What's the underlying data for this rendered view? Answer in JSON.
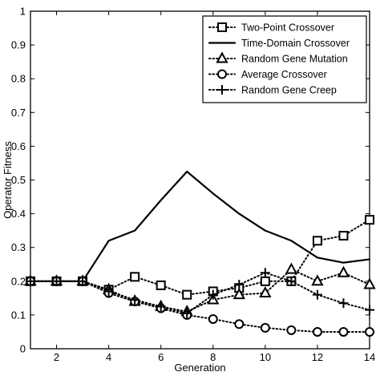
{
  "chart_data": {
    "type": "line",
    "title": "",
    "xlabel": "Generation",
    "ylabel": "Operator Fitness",
    "xlim": [
      1,
      14
    ],
    "ylim": [
      0,
      1
    ],
    "xticks": [
      2,
      4,
      6,
      8,
      10,
      12,
      14
    ],
    "yticks": [
      0,
      0.1,
      0.2,
      0.3,
      0.4,
      0.5,
      0.6,
      0.7,
      0.8,
      0.9,
      1
    ],
    "grid": false,
    "legend_position": "top-right",
    "x": [
      1,
      2,
      3,
      4,
      5,
      6,
      7,
      8,
      9,
      10,
      11,
      12,
      13,
      14
    ],
    "series": [
      {
        "name": "Two-Point Crossover",
        "line": "dotted",
        "marker": "square",
        "values": [
          0.2,
          0.2,
          0.2,
          0.175,
          0.213,
          0.188,
          0.16,
          0.17,
          0.18,
          0.2,
          0.2,
          0.32,
          0.335,
          0.382
        ]
      },
      {
        "name": "Time-Domain Crossover",
        "line": "solid",
        "marker": "none",
        "values": [
          0.2,
          0.2,
          0.2,
          0.32,
          0.35,
          0.44,
          0.525,
          0.46,
          0.4,
          0.35,
          0.32,
          0.27,
          0.255,
          0.265
        ]
      },
      {
        "name": "Random Gene Mutation",
        "line": "dotted",
        "marker": "triangle",
        "values": [
          0.2,
          0.2,
          0.2,
          0.175,
          0.14,
          0.125,
          0.11,
          0.145,
          0.16,
          0.165,
          0.235,
          0.2,
          0.225,
          0.19
        ]
      },
      {
        "name": "Average Crossover",
        "line": "dotted",
        "marker": "circle",
        "values": [
          0.2,
          0.2,
          0.2,
          0.165,
          0.14,
          0.12,
          0.1,
          0.088,
          0.073,
          0.062,
          0.055,
          0.05,
          0.05,
          0.05
        ]
      },
      {
        "name": "Random Gene Creep",
        "line": "dotted",
        "marker": "plus",
        "values": [
          0.2,
          0.2,
          0.2,
          0.17,
          0.145,
          0.125,
          0.105,
          0.16,
          0.19,
          0.225,
          0.2,
          0.16,
          0.135,
          0.115
        ]
      }
    ]
  }
}
